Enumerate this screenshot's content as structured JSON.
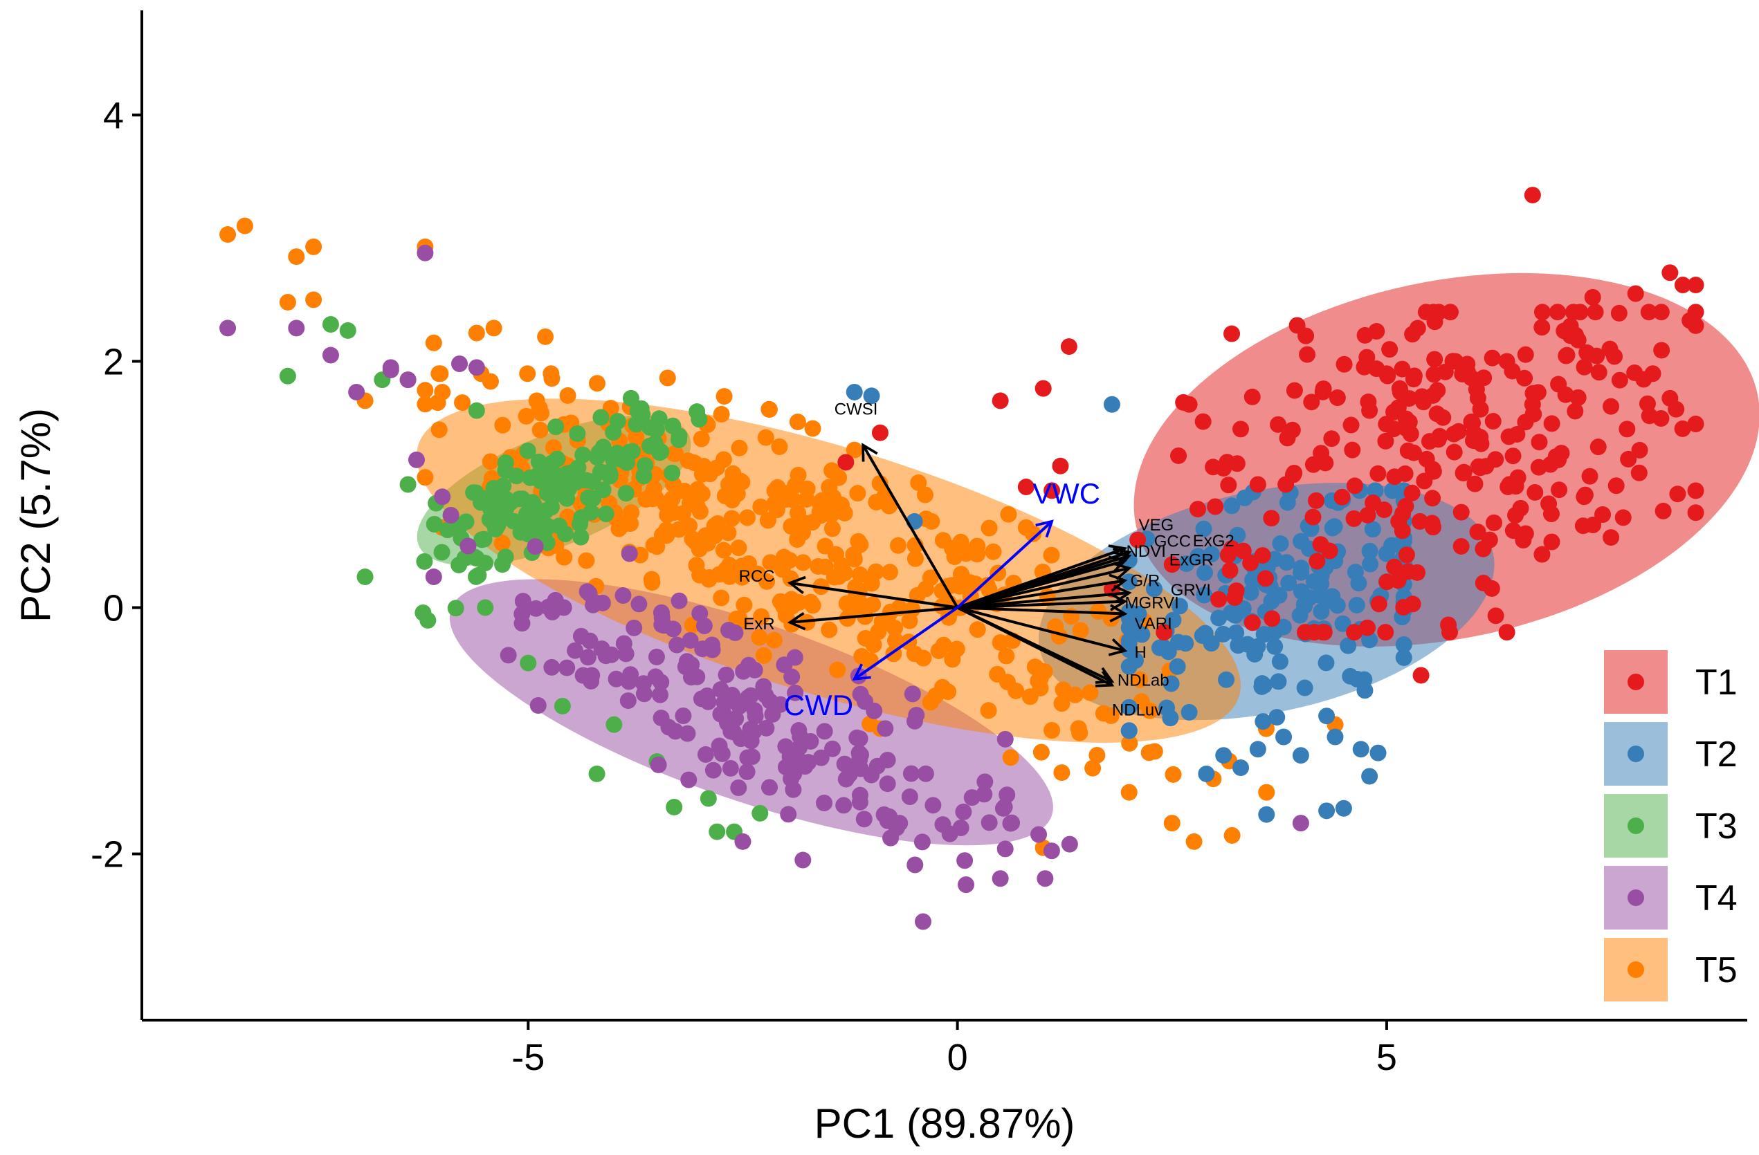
{
  "chart_data": {
    "type": "scatter",
    "xlabel": "PC1 (89.87%)",
    "ylabel": "PC2 (5.7%)",
    "xlim": [
      -9.5,
      9.2
    ],
    "ylim": [
      -3.35,
      4.85
    ],
    "xticks": [
      -5,
      0,
      5
    ],
    "yticks": [
      -2,
      0,
      2,
      4
    ],
    "grid": false,
    "legend_position": "right-bottom",
    "groups": [
      {
        "name": "T1",
        "color": "#E41A1C",
        "ellipse": {
          "cx": 5.7,
          "cy": 1.2,
          "rx": 3.7,
          "ry": 1.45,
          "angle": 12
        },
        "points": [
          [
            6.7,
            3.35
          ],
          [
            8.3,
            2.72
          ],
          [
            8.45,
            2.62
          ],
          [
            8.6,
            2.62
          ],
          [
            7.9,
            2.55
          ],
          [
            7.4,
            2.52
          ],
          [
            5.3,
            2.22
          ],
          [
            5.8,
            2.0
          ],
          [
            5.0,
            1.9
          ],
          [
            6.4,
            2.0
          ],
          [
            7.1,
            2.05
          ],
          [
            7.6,
            2.1
          ],
          [
            8.1,
            1.9
          ],
          [
            8.3,
            1.7
          ],
          [
            1.3,
            2.12
          ],
          [
            0.5,
            1.68
          ],
          [
            1.0,
            1.78
          ],
          [
            2.7,
            1.65
          ],
          [
            1.2,
            1.15
          ],
          [
            -1.3,
            1.18
          ],
          [
            -0.9,
            1.42
          ],
          [
            0.8,
            0.98
          ],
          [
            1.1,
            0.95
          ],
          [
            5.4,
            -0.55
          ],
          [
            6.4,
            -0.2
          ],
          [
            6.5,
            0.75
          ],
          [
            5.5,
            1.35
          ],
          [
            6.0,
            1.5
          ],
          [
            4.8,
            1.6
          ],
          [
            3.5,
            1.0
          ],
          [
            2.8,
            0.8
          ],
          [
            7.0,
            1.2
          ],
          [
            7.8,
            1.45
          ],
          [
            6.2,
            0.55
          ],
          [
            4.6,
            1.28
          ],
          [
            3.3,
            1.45
          ],
          [
            2.5,
            0.35
          ],
          [
            5.9,
            1.1
          ],
          [
            7.3,
            0.9
          ],
          [
            6.7,
            1.65
          ],
          [
            1.8,
            0.15
          ],
          [
            2.1,
            0.55
          ]
        ],
        "generate": {
          "n": 250,
          "x": [
            1.5,
            8.6
          ],
          "y": [
            -0.2,
            2.4
          ]
        }
      },
      {
        "name": "T2",
        "color": "#377EB8",
        "ellipse": {
          "cx": 3.6,
          "cy": 0.05,
          "rx": 2.7,
          "ry": 0.9,
          "angle": 12
        },
        "points": [
          [
            -1.2,
            1.75
          ],
          [
            -1.0,
            1.72
          ],
          [
            1.8,
            1.65
          ],
          [
            -0.5,
            0.7
          ],
          [
            4.8,
            -1.37
          ],
          [
            4.9,
            -1.18
          ],
          [
            4.4,
            -1.05
          ],
          [
            4.3,
            -1.65
          ],
          [
            4.5,
            -1.63
          ],
          [
            3.6,
            -1.68
          ],
          [
            4.0,
            -1.2
          ],
          [
            3.5,
            -1.15
          ],
          [
            3.1,
            -1.2
          ],
          [
            2.9,
            -1.35
          ],
          [
            3.3,
            -1.3
          ],
          [
            3.8,
            -1.05
          ],
          [
            4.3,
            -0.88
          ],
          [
            2.7,
            -0.85
          ],
          [
            4.7,
            -1.15
          ]
        ],
        "generate": {
          "n": 170,
          "x": [
            2.0,
            5.2
          ],
          "y": [
            -1.0,
            0.95
          ]
        }
      },
      {
        "name": "T3",
        "color": "#4DAF4A",
        "ellipse": {
          "cx": -4.7,
          "cy": 0.95,
          "rx": 1.7,
          "ry": 0.45,
          "angle": 22
        },
        "points": [
          [
            -7.1,
            2.25
          ],
          [
            -7.3,
            2.3
          ],
          [
            -7.8,
            1.88
          ],
          [
            -6.7,
            1.85
          ],
          [
            -5.6,
            1.6
          ],
          [
            -6.9,
            0.25
          ],
          [
            -5.6,
            0.4
          ],
          [
            -4.8,
            0.55
          ],
          [
            -5.5,
            0.0
          ],
          [
            -4.6,
            -0.8
          ],
          [
            -4.2,
            -1.35
          ],
          [
            -3.5,
            -1.25
          ],
          [
            -3.3,
            -1.62
          ],
          [
            -2.8,
            -1.82
          ],
          [
            -2.6,
            -1.82
          ],
          [
            -2.3,
            -1.67
          ],
          [
            -2.9,
            -1.55
          ],
          [
            -4.0,
            -0.95
          ],
          [
            -5.3,
            0.35
          ],
          [
            -6.4,
            1.0
          ],
          [
            -5.9,
            0.75
          ],
          [
            -5.0,
            -0.45
          ]
        ],
        "generate": {
          "n": 140,
          "x": [
            -6.3,
            -2.0
          ],
          "y": [
            -1.6,
            1.7
          ]
        }
      },
      {
        "name": "T4",
        "color": "#984EA3",
        "ellipse": {
          "cx": -2.4,
          "cy": -0.85,
          "rx": 3.7,
          "ry": 0.72,
          "angle": -19
        },
        "points": [
          [
            -8.5,
            2.27
          ],
          [
            -6.2,
            2.88
          ],
          [
            -7.7,
            2.27
          ],
          [
            -7.3,
            2.05
          ],
          [
            -6.6,
            1.93
          ],
          [
            -6.4,
            1.85
          ],
          [
            -7.0,
            1.75
          ],
          [
            -5.6,
            1.95
          ],
          [
            -5.8,
            1.98
          ],
          [
            -6.6,
            1.95
          ],
          [
            -6.3,
            1.2
          ],
          [
            -6.0,
            0.9
          ],
          [
            -5.9,
            0.75
          ],
          [
            -5.7,
            0.5
          ],
          [
            -6.1,
            0.25
          ],
          [
            -0.4,
            -2.55
          ],
          [
            0.1,
            -2.25
          ],
          [
            0.5,
            -2.2
          ],
          [
            -2.5,
            -1.9
          ],
          [
            -1.8,
            -2.05
          ],
          [
            4.0,
            -1.75
          ]
        ],
        "generate": {
          "n": 200,
          "x": [
            -5.8,
            1.4
          ],
          "y": [
            -2.2,
            0.6
          ]
        }
      },
      {
        "name": "T5",
        "color": "#FF7F00",
        "ellipse": {
          "cx": -1.5,
          "cy": 0.3,
          "rx": 5.0,
          "ry": 1.0,
          "angle": -17
        },
        "points": [
          [
            -8.5,
            3.03
          ],
          [
            -8.3,
            3.1
          ],
          [
            -7.7,
            2.85
          ],
          [
            -7.5,
            2.93
          ],
          [
            -6.2,
            2.93
          ],
          [
            -5.6,
            2.23
          ],
          [
            -5.4,
            2.27
          ],
          [
            -4.8,
            2.2
          ],
          [
            -6.1,
            2.15
          ],
          [
            -7.5,
            2.5
          ],
          [
            -7.8,
            2.48
          ],
          [
            -6.9,
            1.68
          ],
          [
            -6.4,
            1.85
          ],
          [
            -6.0,
            1.75
          ],
          [
            -4.9,
            1.68
          ],
          [
            -4.5,
            1.5
          ],
          [
            -1.2,
            1.28
          ],
          [
            -0.3,
            0.7
          ],
          [
            0.8,
            0.65
          ],
          [
            1.0,
            -1.95
          ],
          [
            2.0,
            -1.5
          ],
          [
            3.2,
            -1.85
          ],
          [
            3.6,
            -1.5
          ],
          [
            4.4,
            -0.95
          ],
          [
            2.5,
            -1.75
          ],
          [
            -5.7,
            0.42
          ],
          [
            -6.0,
            0.65
          ],
          [
            -3.3,
            1.25
          ]
        ],
        "generate": {
          "n": 380,
          "x": [
            -6.2,
            3.8
          ],
          "y": [
            -1.9,
            1.9
          ]
        }
      }
    ],
    "loadings": [
      {
        "label": "CWSI",
        "x": -1.1,
        "y": 1.32,
        "color": "#000000"
      },
      {
        "label": "RCC",
        "x": -1.95,
        "y": 0.2,
        "color": "#000000"
      },
      {
        "label": "ExR",
        "x": -1.95,
        "y": -0.12,
        "color": "#000000"
      },
      {
        "label": "VEG",
        "x": 1.95,
        "y": 0.48,
        "color": "#000000"
      },
      {
        "label": "GCC",
        "x": 2.0,
        "y": 0.45,
        "color": "#000000"
      },
      {
        "label": "ExG2",
        "x": 2.0,
        "y": 0.42,
        "color": "#000000"
      },
      {
        "label": "NDVI",
        "x": 1.95,
        "y": 0.38,
        "color": "#000000"
      },
      {
        "label": "ExGR",
        "x": 2.0,
        "y": 0.32,
        "color": "#000000"
      },
      {
        "label": "G/R",
        "x": 1.95,
        "y": 0.22,
        "color": "#000000"
      },
      {
        "label": "GRVI",
        "x": 2.0,
        "y": 0.12,
        "color": "#000000"
      },
      {
        "label": "MGRVI",
        "x": 1.95,
        "y": 0.05,
        "color": "#000000"
      },
      {
        "label": "VARI",
        "x": 1.95,
        "y": -0.05,
        "color": "#000000"
      },
      {
        "label": "H",
        "x": 1.95,
        "y": -0.35,
        "color": "#000000"
      },
      {
        "label": "NDLab",
        "x": 1.8,
        "y": -0.6,
        "color": "#000000"
      },
      {
        "label": "NDLuv",
        "x": 1.8,
        "y": -0.63,
        "color": "#000000"
      },
      {
        "label": "VWC",
        "x": 1.1,
        "y": 0.7,
        "color": "#0000FF"
      },
      {
        "label": "CWD",
        "x": -1.2,
        "y": -0.58,
        "color": "#0000FF"
      }
    ],
    "legend": [
      "T1",
      "T2",
      "T3",
      "T4",
      "T5"
    ]
  }
}
